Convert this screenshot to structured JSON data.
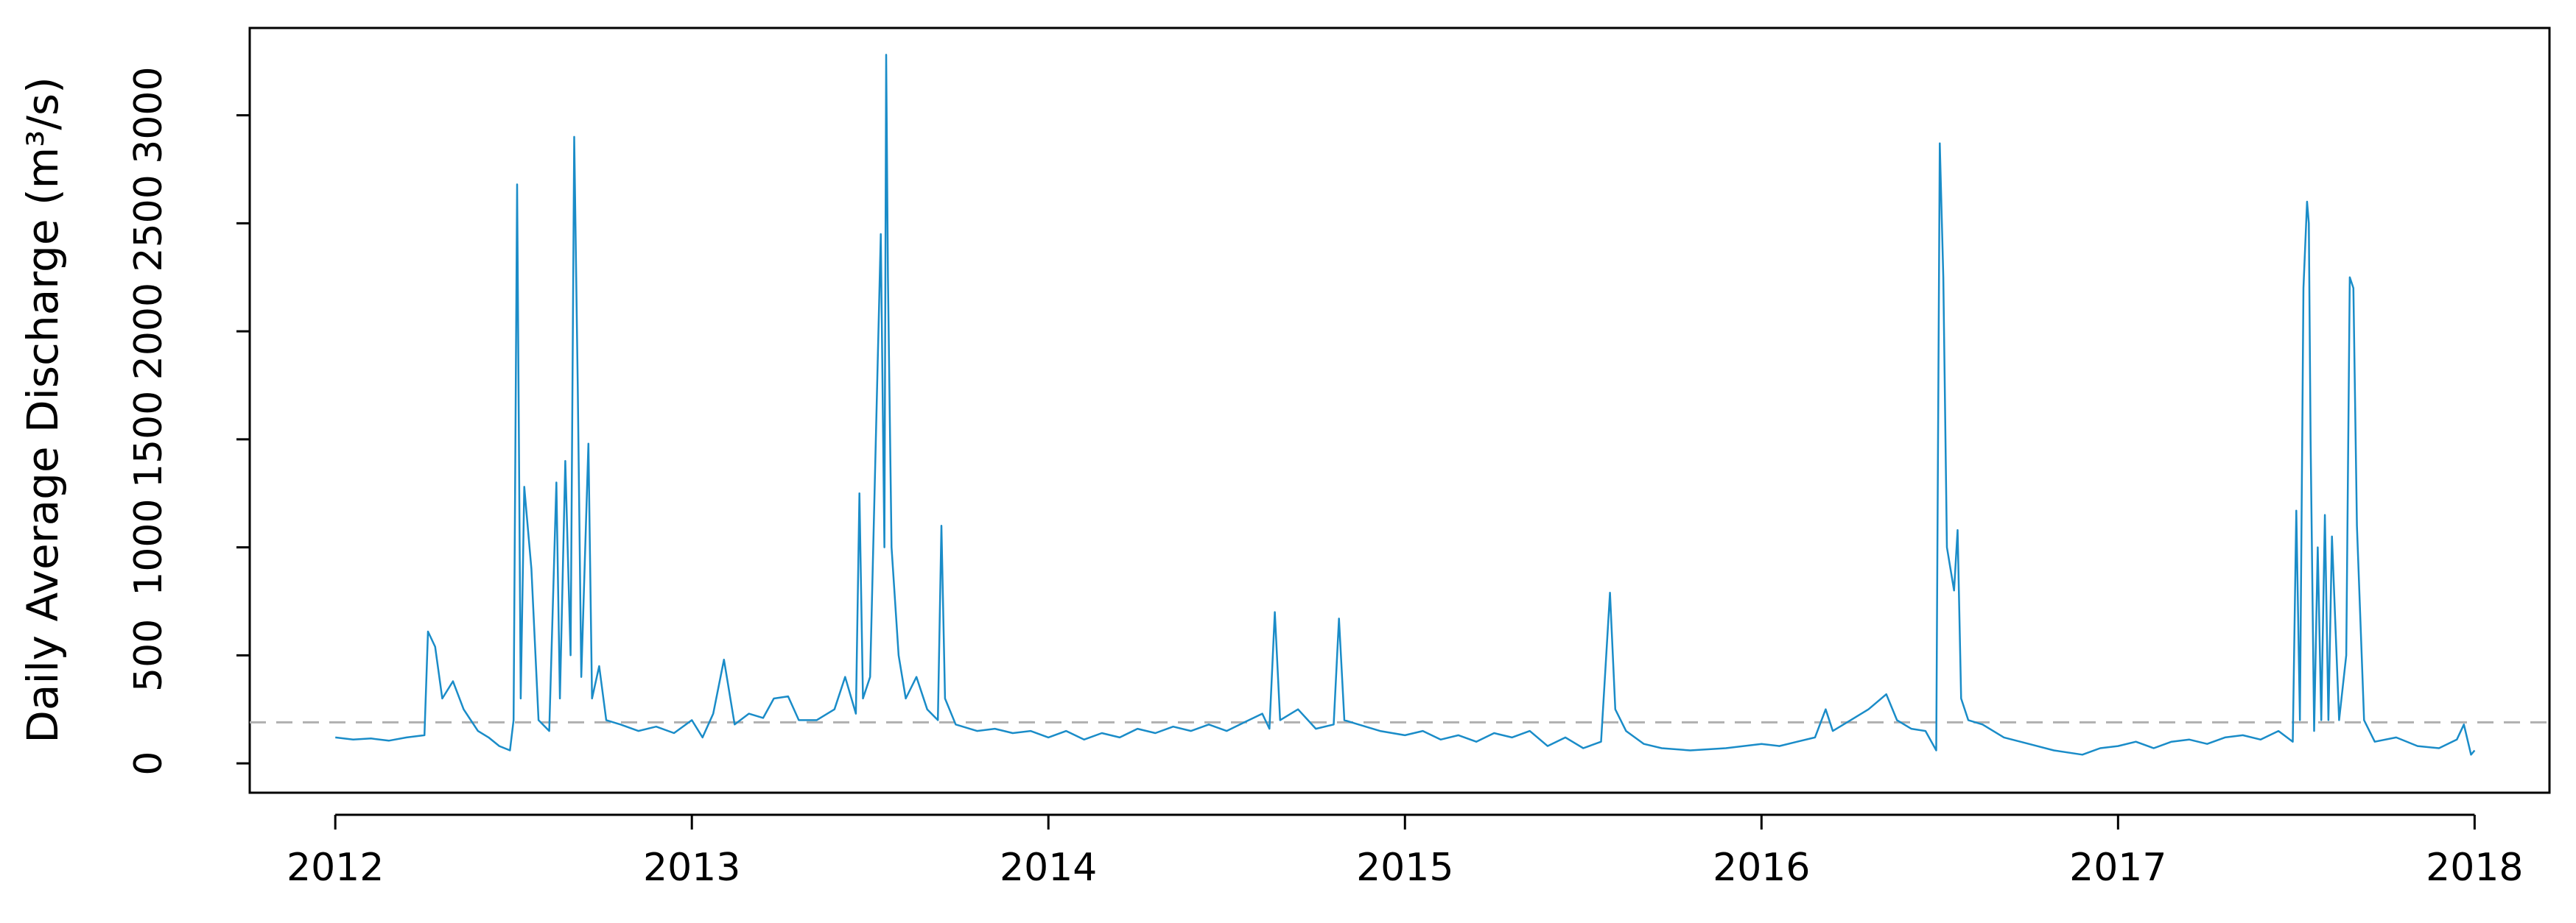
{
  "chart_data": {
    "type": "line",
    "y_label": "Daily Average Discharge (m³/s)",
    "color": "#1a8cc8",
    "x": [
      2012.0,
      2012.05,
      2012.1,
      2012.15,
      2012.2,
      2012.25,
      2012.26,
      2012.28,
      2012.3,
      2012.33,
      2012.36,
      2012.4,
      2012.43,
      2012.46,
      2012.49,
      2012.5,
      2012.51,
      2012.52,
      2012.53,
      2012.55,
      2012.57,
      2012.6,
      2012.62,
      2012.63,
      2012.645,
      2012.66,
      2012.67,
      2012.68,
      2012.69,
      2012.71,
      2012.72,
      2012.74,
      2012.76,
      2012.8,
      2012.85,
      2012.9,
      2012.95,
      2013.0,
      2013.03,
      2013.06,
      2013.09,
      2013.12,
      2013.16,
      2013.2,
      2013.23,
      2013.27,
      2013.3,
      2013.35,
      2013.4,
      2013.43,
      2013.46,
      2013.47,
      2013.48,
      2013.5,
      2013.53,
      2013.54,
      2013.545,
      2013.55,
      2013.56,
      2013.58,
      2013.6,
      2013.63,
      2013.66,
      2013.69,
      2013.7,
      2013.71,
      2013.74,
      2013.8,
      2013.85,
      2013.9,
      2013.95,
      2014.0,
      2014.05,
      2014.1,
      2014.15,
      2014.2,
      2014.25,
      2014.3,
      2014.35,
      2014.4,
      2014.45,
      2014.5,
      2014.55,
      2014.6,
      2014.62,
      2014.635,
      2014.65,
      2014.7,
      2014.75,
      2014.8,
      2014.815,
      2014.83,
      2014.87,
      2014.93,
      2015.0,
      2015.05,
      2015.1,
      2015.15,
      2015.2,
      2015.25,
      2015.3,
      2015.35,
      2015.4,
      2015.45,
      2015.5,
      2015.55,
      2015.575,
      2015.59,
      2015.62,
      2015.67,
      2015.72,
      2015.8,
      2015.9,
      2016.0,
      2016.05,
      2016.1,
      2016.15,
      2016.18,
      2016.2,
      2016.25,
      2016.3,
      2016.35,
      2016.38,
      2016.42,
      2016.46,
      2016.49,
      2016.5,
      2016.51,
      2016.52,
      2016.54,
      2016.55,
      2016.56,
      2016.58,
      2016.62,
      2016.68,
      2016.75,
      2016.82,
      2016.9,
      2016.95,
      2017.0,
      2017.05,
      2017.1,
      2017.15,
      2017.2,
      2017.25,
      2017.3,
      2017.35,
      2017.4,
      2017.45,
      2017.49,
      2017.5,
      2017.51,
      2017.52,
      2017.53,
      2017.535,
      2017.54,
      2017.55,
      2017.56,
      2017.57,
      2017.58,
      2017.59,
      2017.6,
      2017.62,
      2017.64,
      2017.65,
      2017.66,
      2017.67,
      2017.69,
      2017.72,
      2017.78,
      2017.84,
      2017.9,
      2017.95,
      2017.97,
      2017.99,
      2018.0
    ],
    "values": [
      120,
      110,
      115,
      105,
      120,
      130,
      610,
      540,
      300,
      380,
      250,
      150,
      120,
      80,
      60,
      200,
      2680,
      300,
      1280,
      900,
      200,
      150,
      1300,
      300,
      1400,
      500,
      2900,
      1750,
      400,
      1480,
      300,
      450,
      200,
      180,
      150,
      170,
      140,
      200,
      120,
      230,
      480,
      180,
      230,
      210,
      300,
      310,
      200,
      200,
      250,
      400,
      230,
      1250,
      300,
      400,
      2450,
      1000,
      3280,
      2250,
      1000,
      500,
      300,
      400,
      250,
      200,
      1100,
      300,
      180,
      150,
      160,
      140,
      150,
      120,
      150,
      110,
      140,
      120,
      160,
      140,
      170,
      150,
      180,
      150,
      190,
      230,
      160,
      700,
      200,
      250,
      160,
      180,
      670,
      200,
      180,
      150,
      130,
      150,
      110,
      130,
      100,
      140,
      120,
      150,
      80,
      120,
      70,
      100,
      790,
      250,
      150,
      90,
      70,
      60,
      70,
      90,
      80,
      100,
      120,
      250,
      150,
      200,
      250,
      320,
      200,
      160,
      150,
      60,
      2870,
      2250,
      1000,
      800,
      1080,
      300,
      200,
      180,
      120,
      90,
      60,
      40,
      70,
      80,
      100,
      70,
      100,
      110,
      90,
      120,
      130,
      110,
      150,
      100,
      1170,
      200,
      2200,
      2600,
      2500,
      1500,
      150,
      1000,
      200,
      1150,
      200,
      1050,
      200,
      500,
      2250,
      2200,
      1100,
      200,
      100,
      120,
      80,
      70,
      110,
      180,
      40,
      60
    ],
    "reference_line": 190,
    "xlim": [
      2011.76,
      2018.21
    ],
    "xticks": [
      2012,
      2013,
      2014,
      2015,
      2016,
      2017,
      2018
    ],
    "ylim": [
      -136,
      3404
    ],
    "yticks": [
      0,
      500,
      1000,
      1500,
      2000,
      2500,
      3000
    ]
  }
}
